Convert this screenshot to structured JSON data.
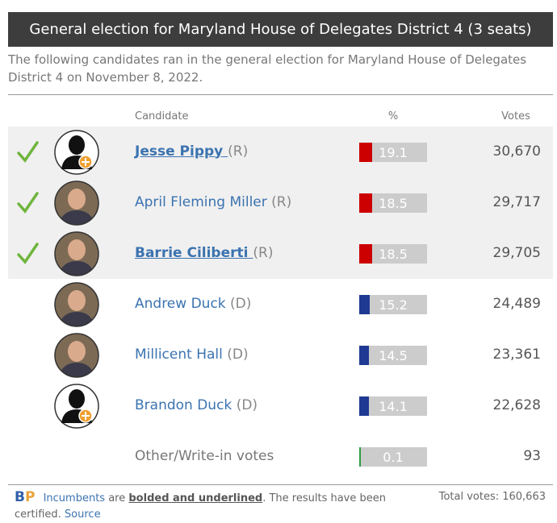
{
  "header": {
    "title": "General election for Maryland House of Delegates District 4 (3 seats)",
    "intro": "The following candidates ran in the general election for Maryland House of Delegates District 4 on November 8, 2022."
  },
  "table": {
    "columns": [
      "Candidate",
      "%",
      "Votes"
    ],
    "rows": [
      {
        "name": "Jesse Pippy",
        "party": "(R)",
        "pct": 19.1,
        "votes": "30,670",
        "winner": true,
        "incumbent": true,
        "color": "#cc0000"
      },
      {
        "name": "April Fleming Miller",
        "party": "(R)",
        "pct": 18.5,
        "votes": "29,717",
        "winner": true,
        "incumbent": false,
        "color": "#cc0000"
      },
      {
        "name": "Barrie Ciliberti",
        "party": "(R)",
        "pct": 18.5,
        "votes": "29,705",
        "winner": true,
        "incumbent": true,
        "color": "#cc0000"
      },
      {
        "name": "Andrew Duck",
        "party": "(D)",
        "pct": 15.2,
        "votes": "24,489",
        "winner": false,
        "incumbent": false,
        "color": "#1f3a93"
      },
      {
        "name": "Millicent Hall",
        "party": "(D)",
        "pct": 14.5,
        "votes": "23,361",
        "winner": false,
        "incumbent": false,
        "color": "#1f3a93"
      },
      {
        "name": "Brandon Duck",
        "party": "(D)",
        "pct": 14.1,
        "votes": "22,628",
        "winner": false,
        "incumbent": false,
        "color": "#1f3a93"
      },
      {
        "name": "Other/Write-in votes",
        "party": null,
        "pct": 0.1,
        "votes": "93",
        "winner": false,
        "incumbent": false,
        "color": "#2e9e3e"
      }
    ]
  },
  "footer": {
    "logo_b": "B",
    "logo_p": "P",
    "incumbents": "Incumbents",
    "are": "are",
    "bold": "bolded and underlined",
    "rest": ". The results have been certified.",
    "source": "Source",
    "total": "Total votes: 160,663"
  }
}
